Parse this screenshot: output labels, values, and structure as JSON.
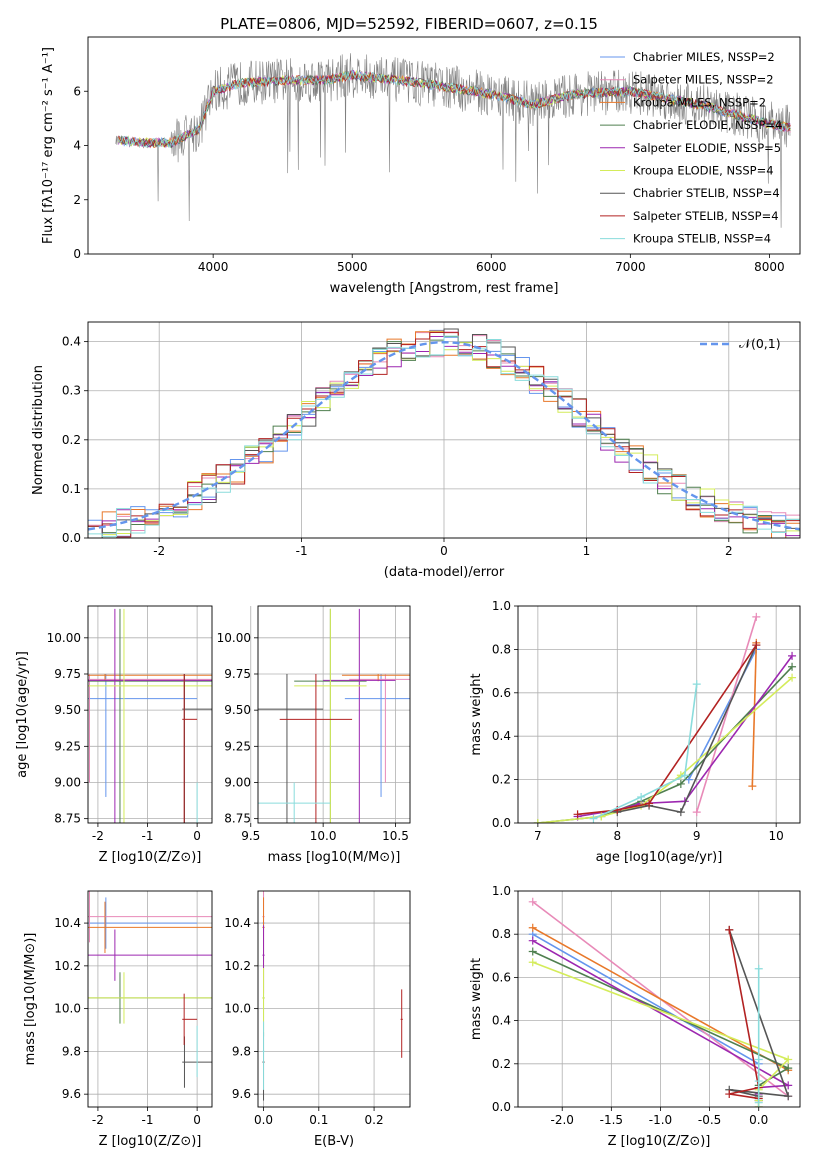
{
  "chart_data": [
    {
      "type": "line",
      "title": "PLATE=0806, MJD=52592, FIBERID=0607, z=0.15",
      "xlabel": "wavelength [Angstrom, rest frame]",
      "ylabel": "Flux [fλ10⁻¹⁷ erg cm⁻² s⁻¹ A⁻¹]",
      "xlim": [
        3100,
        8220
      ],
      "ylim": [
        0,
        8
      ],
      "xticks": [
        4000,
        5000,
        6000,
        7000,
        8000
      ],
      "yticks": [
        0,
        2,
        4,
        6
      ],
      "grid": false,
      "legend_position": "right",
      "legend": [
        {
          "name": "Chabrier MILES, NSSP=2",
          "color": "#6495ed"
        },
        {
          "name": "Salpeter MILES, NSSP=2",
          "color": "#e88ab8"
        },
        {
          "name": "Kroupa MILES, NSSP=2",
          "color": "#e8782a"
        },
        {
          "name": "Chabrier ELODIE, NSSP=4",
          "color": "#4f7f4f"
        },
        {
          "name": "Salpeter ELODIE, NSSP=5",
          "color": "#9c27b0"
        },
        {
          "name": "Kroupa ELODIE, NSSP=4",
          "color": "#d4ec5a"
        },
        {
          "name": "Chabrier STELIB, NSSP=4",
          "color": "#555555"
        },
        {
          "name": "Salpeter STELIB, NSSP=4",
          "color": "#b22222"
        },
        {
          "name": "Kroupa STELIB, NSSP=4",
          "color": "#8adcdc"
        }
      ],
      "data_color": "#808080",
      "continuum": {
        "x": [
          3300,
          3500,
          3700,
          3900,
          4000,
          4200,
          4500,
          4800,
          5000,
          5500,
          6000,
          6300,
          6600,
          7000,
          7500,
          8000,
          8200
        ],
        "y": [
          4.2,
          4.1,
          4.1,
          4.6,
          6.0,
          6.3,
          6.4,
          6.4,
          6.6,
          6.3,
          5.9,
          5.5,
          5.9,
          6.0,
          5.5,
          4.8,
          4.6
        ]
      }
    },
    {
      "type": "histogram",
      "xlabel": "(data-model)/error",
      "ylabel": "Normed distribution",
      "xlim": [
        -2.5,
        2.5
      ],
      "ylim": [
        0,
        0.44
      ],
      "xticks": [
        -2,
        -1,
        0,
        1,
        2
      ],
      "yticks": [
        0.0,
        0.1,
        0.2,
        0.3,
        0.4
      ],
      "grid": true,
      "legend_position": "top-right",
      "reference_curve": {
        "name": "𝒩(0,1)",
        "color": "#6495ed"
      },
      "bin_width": 0.1
    },
    {
      "type": "scatter",
      "xlabel": "Z [log10(Z/Z⊙)]",
      "ylabel": "age  [log10(age/yr)]",
      "xlim": [
        -2.2,
        0.3
      ],
      "ylim": [
        8.72,
        10.22
      ],
      "xticks": [
        -2,
        -1,
        0
      ],
      "yticks": [
        8.75,
        9.0,
        9.25,
        9.5,
        9.75,
        10.0
      ],
      "grid": true
    },
    {
      "type": "scatter",
      "xlabel": "mass [log10(M/M⊙)]",
      "ylabel": "",
      "xlim": [
        9.55,
        10.6
      ],
      "ylim": [
        8.72,
        10.22
      ],
      "xticks": [
        9.5,
        10.0,
        10.5
      ],
      "yticks": [
        8.75,
        9.0,
        9.25,
        9.5,
        9.75,
        10.0
      ],
      "grid": true
    },
    {
      "type": "line",
      "xlabel": "age  [log10(age/yr)]",
      "ylabel": "mass weight",
      "xlim": [
        6.75,
        10.3
      ],
      "ylim": [
        0.0,
        1.0
      ],
      "xticks": [
        7,
        8,
        9,
        10
      ],
      "yticks": [
        0.0,
        0.2,
        0.4,
        0.6,
        0.8,
        1.0
      ],
      "grid": true
    },
    {
      "type": "scatter",
      "xlabel": "Z [log10(Z/Z⊙)]",
      "ylabel": "mass [log10(M/M⊙)]",
      "xlim": [
        -2.2,
        0.3
      ],
      "ylim": [
        9.54,
        10.55
      ],
      "xticks": [
        -2,
        -1,
        0
      ],
      "yticks": [
        9.6,
        9.8,
        10.0,
        10.2,
        10.4
      ],
      "grid": true
    },
    {
      "type": "scatter",
      "xlabel": "E(B-V)",
      "ylabel": "",
      "xlim": [
        -0.01,
        0.265
      ],
      "ylim": [
        9.54,
        10.55
      ],
      "xticks": [
        0.0,
        0.1,
        0.2
      ],
      "yticks": [
        9.6,
        9.8,
        10.0,
        10.2,
        10.4
      ],
      "grid": true
    },
    {
      "type": "line",
      "xlabel": "Z [log10(Z/Z⊙)]",
      "ylabel": "mass weight",
      "xlim": [
        -2.45,
        0.42
      ],
      "ylim": [
        0.0,
        1.0
      ],
      "xticks": [
        -2.0,
        -1.5,
        -1.0,
        -0.5,
        0.0
      ],
      "yticks": [
        0.0,
        0.2,
        0.4,
        0.6,
        0.8,
        1.0
      ],
      "grid": true
    }
  ],
  "series": [
    {
      "name": "Chabrier MILES",
      "color": "#6495ed",
      "age": [
        8.9,
        9.75
      ],
      "Z": [
        0.0,
        -2.3
      ],
      "weights": [
        0.2,
        0.8
      ],
      "mass": 10.4,
      "ebv": 0.0
    },
    {
      "name": "Salpeter MILES",
      "color": "#e88ab8",
      "age": [
        9.0,
        9.75
      ],
      "Z": [
        0.3,
        -2.3
      ],
      "weights": [
        0.05,
        0.95
      ],
      "mass": 10.43,
      "ebv": 0.0
    },
    {
      "name": "Kroupa MILES",
      "color": "#e8782a",
      "age": [
        9.7,
        9.75
      ],
      "Z": [
        0.3,
        -2.3
      ],
      "weights": [
        0.17,
        0.83
      ],
      "mass": 10.38,
      "ebv": 0.0
    },
    {
      "name": "Chabrier ELODIE",
      "color": "#4f7f4f",
      "age": [
        7.0,
        7.8,
        8.3,
        8.8,
        10.2
      ],
      "Z": [
        0.0,
        0.0,
        0.0,
        0.3,
        -2.3
      ],
      "weights": [
        0.0,
        0.03,
        0.1,
        0.18,
        0.72
      ],
      "mass": 10.05,
      "ebv": 0.0
    },
    {
      "name": "Salpeter ELODIE",
      "color": "#9c27b0",
      "age": [
        7.5,
        8.0,
        8.3,
        8.85,
        10.2
      ],
      "Z": [
        0.0,
        0.0,
        0.0,
        0.3,
        -2.3
      ],
      "weights": [
        0.03,
        0.06,
        0.09,
        0.1,
        0.77
      ],
      "mass": 10.25,
      "ebv": 0.0
    },
    {
      "name": "Kroupa ELODIE",
      "color": "#d4ec5a",
      "age": [
        7.0,
        7.8,
        8.3,
        8.8,
        10.2
      ],
      "Z": [
        0.0,
        0.0,
        0.0,
        0.3,
        -2.3
      ],
      "weights": [
        0.0,
        0.03,
        0.08,
        0.22,
        0.67
      ],
      "mass": 10.05,
      "ebv": 0.0
    },
    {
      "name": "Chabrier STELIB",
      "color": "#555555",
      "age": [
        8.0,
        8.4,
        8.8,
        9.75
      ],
      "Z": [
        0.0,
        -0.3,
        0.3,
        -0.3
      ],
      "weights": [
        0.05,
        0.08,
        0.05,
        0.82
      ],
      "mass": 9.75,
      "ebv": 0.0
    },
    {
      "name": "Salpeter STELIB",
      "color": "#b22222",
      "age": [
        7.5,
        8.0,
        8.4,
        9.75
      ],
      "Z": [
        0.0,
        -0.3,
        0.0,
        -0.3
      ],
      "weights": [
        0.04,
        0.06,
        0.09,
        0.82
      ],
      "mass": 9.95,
      "ebv": 0.25
    },
    {
      "name": "Kroupa STELIB",
      "color": "#8adcdc",
      "age": [
        7.7,
        8.3,
        8.85,
        9.0
      ],
      "Z": [
        0.0,
        0.0,
        0.0,
        0.0
      ],
      "weights": [
        0.02,
        0.12,
        0.22,
        0.64
      ],
      "mass": 9.8,
      "ebv": 0.0
    }
  ]
}
